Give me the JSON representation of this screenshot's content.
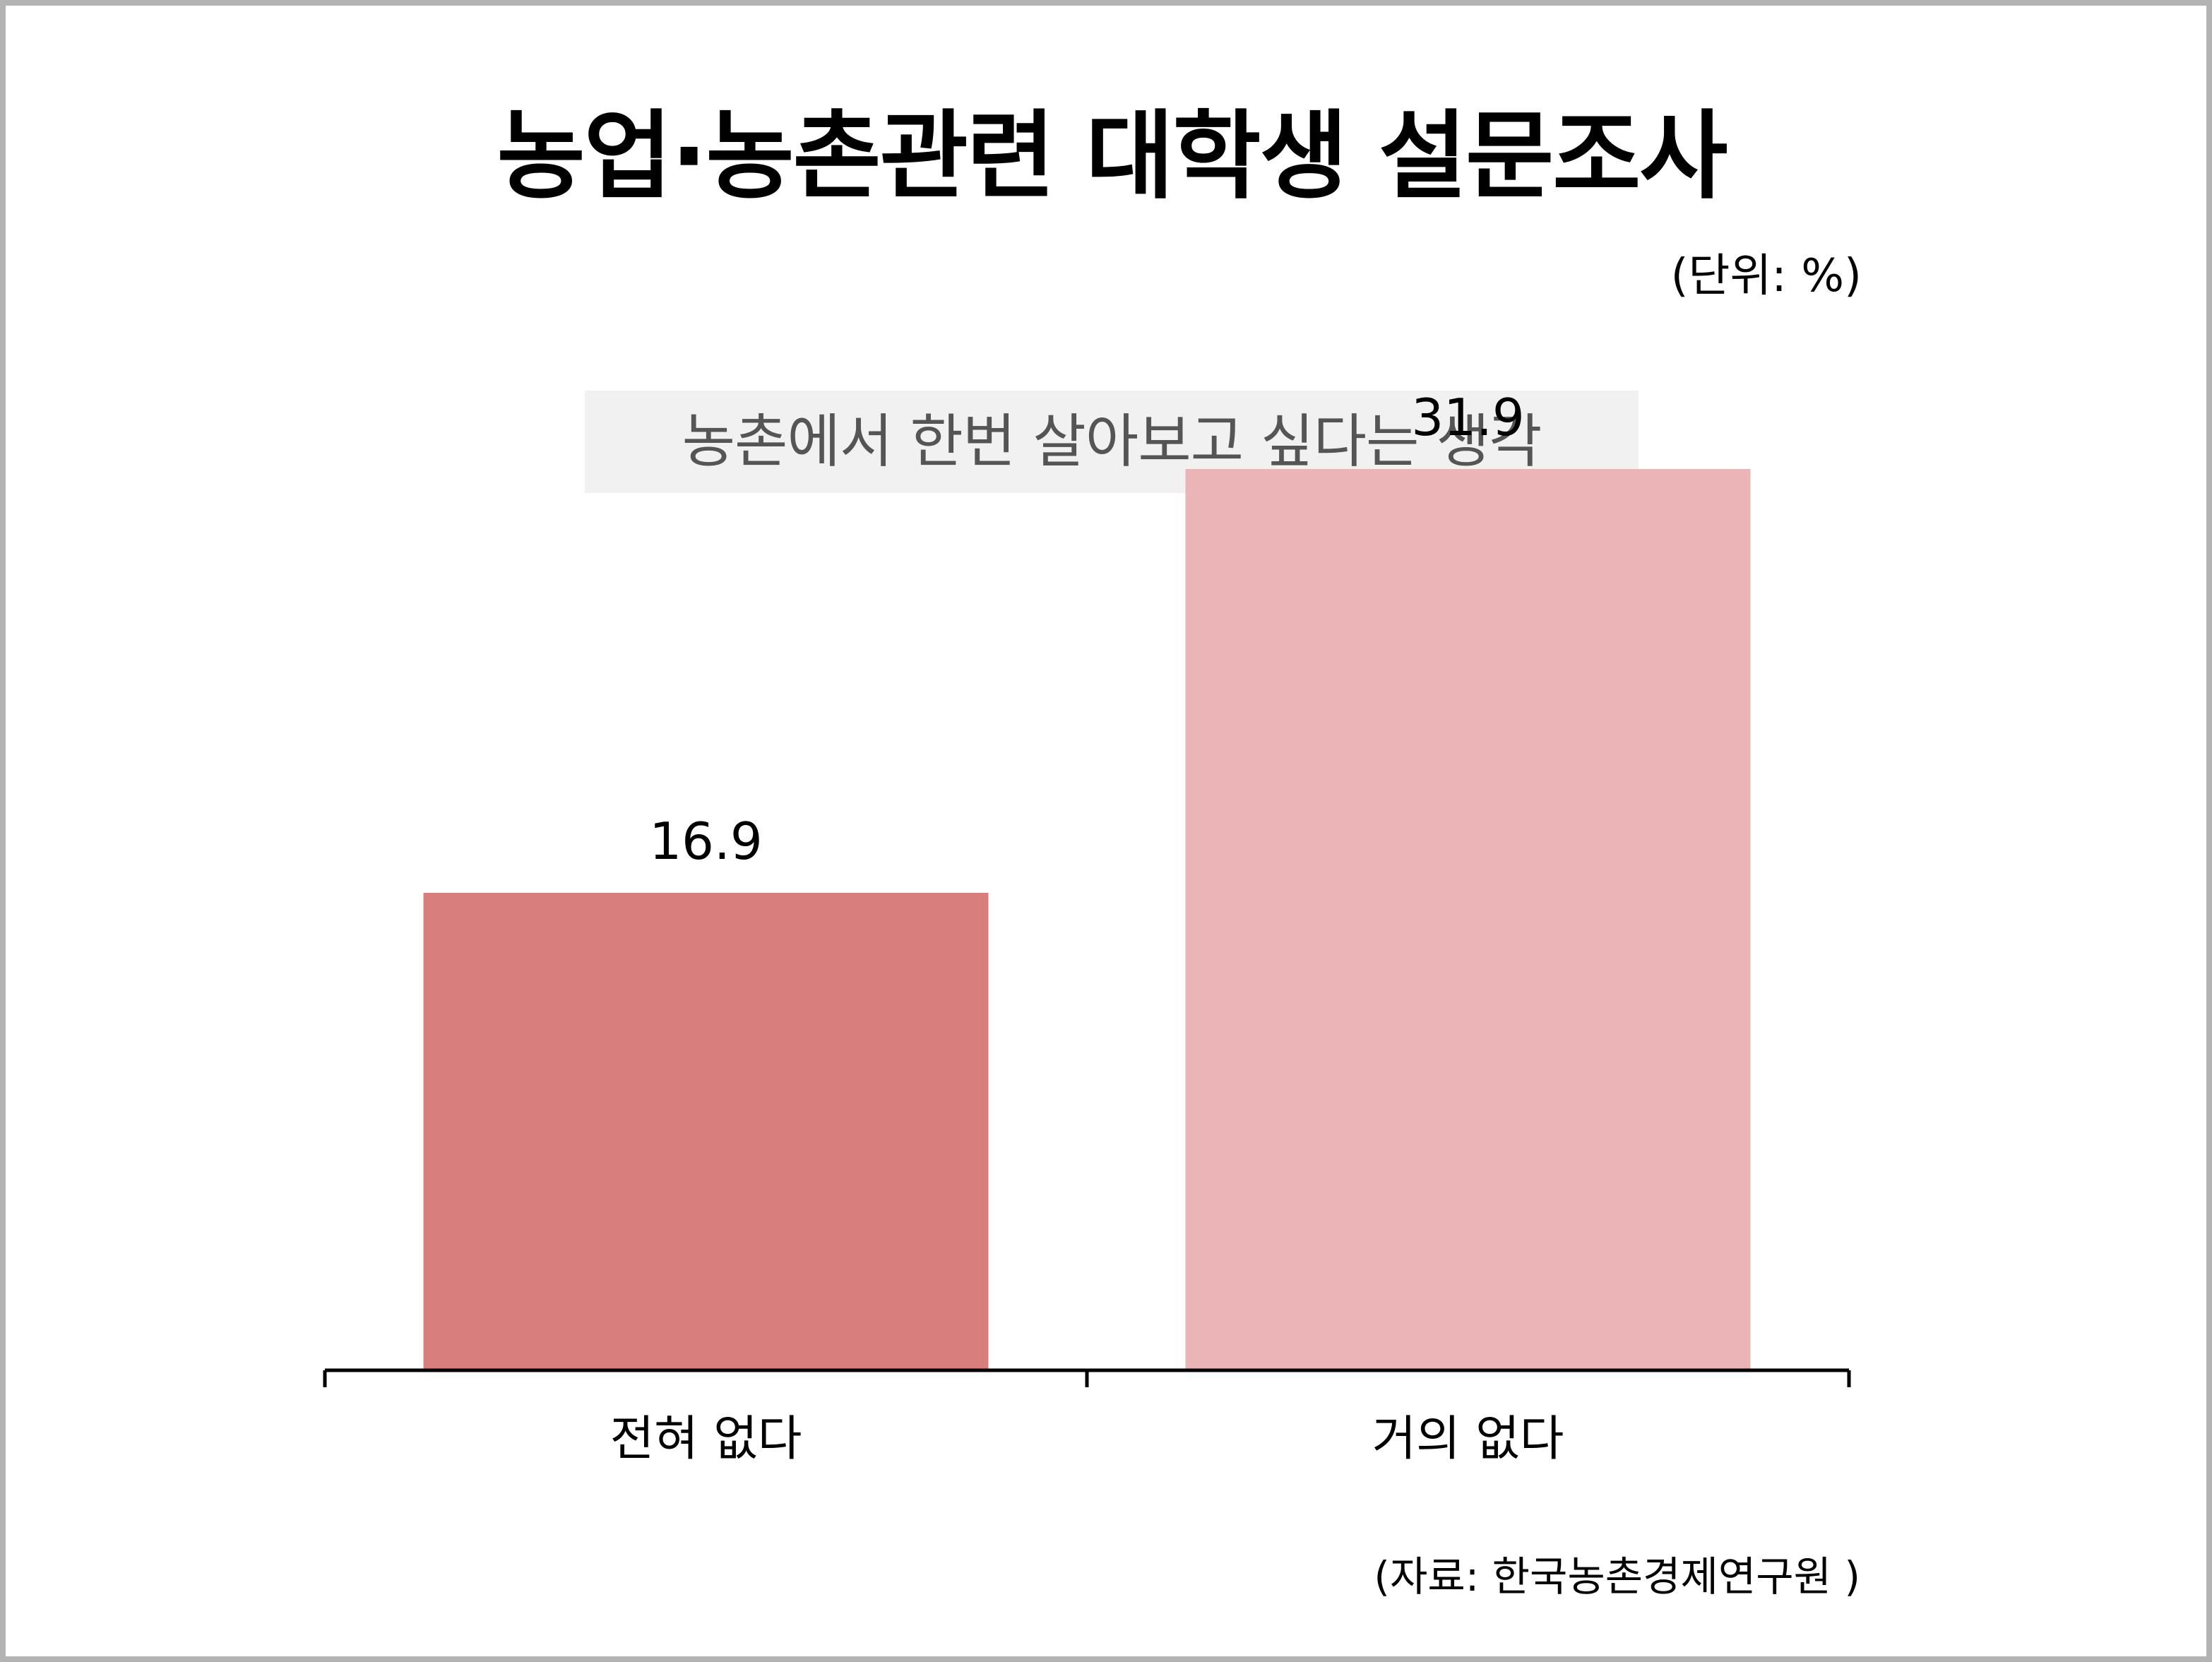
{
  "title": "농업·농촌관련 대학생 설문조사",
  "unit_label": "(단위: %)",
  "subtitle": "농촌에서 한번 살아보고 싶다는 생각",
  "source": "(자료: 한국농촌경제연구원 )",
  "chart_data": {
    "type": "bar",
    "title": "농업·농촌관련 대학생 설문조사",
    "subtitle": "농촌에서 한번 살아보고 싶다는 생각",
    "categories": [
      "전혀 없다",
      "거의 없다"
    ],
    "values": [
      16.9,
      31.9
    ],
    "value_labels": [
      "16.9",
      "31.9"
    ],
    "colors": [
      "#d87e7c",
      "#ebb4b6"
    ],
    "ylabel": "",
    "xlabel": "",
    "ylim": [
      0,
      36
    ],
    "grid": false,
    "legend": "none"
  }
}
